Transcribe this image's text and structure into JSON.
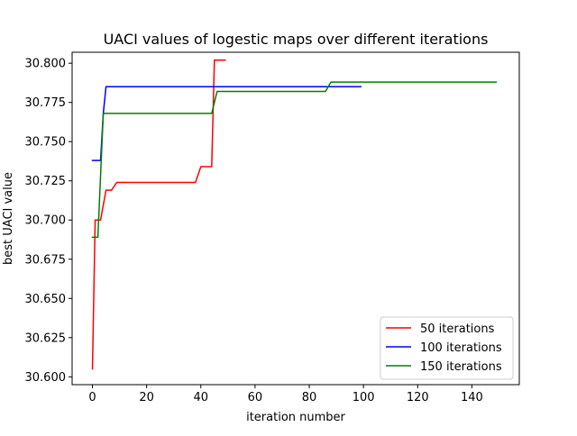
{
  "chart_data": {
    "type": "line",
    "title": "UACI values of logestic maps over different iterations",
    "xlabel": "iteration number",
    "ylabel": "best UACI value",
    "xlim": [
      -7.5,
      157.5
    ],
    "ylim": [
      30.595,
      30.807
    ],
    "xticks": [
      0,
      20,
      40,
      60,
      80,
      100,
      120,
      140
    ],
    "yticks": [
      30.6,
      30.625,
      30.65,
      30.675,
      30.7,
      30.725,
      30.75,
      30.775,
      30.8
    ],
    "yticklabels": [
      "30.600",
      "30.625",
      "30.650",
      "30.675",
      "30.700",
      "30.725",
      "30.750",
      "30.775",
      "30.800"
    ],
    "grid": false,
    "legend_position": "lower-right",
    "series": [
      {
        "name": "50 iterations",
        "color": "#ff0000",
        "points": [
          [
            0,
            30.605
          ],
          [
            1,
            30.7
          ],
          [
            2,
            30.7
          ],
          [
            3,
            30.7
          ],
          [
            5,
            30.719
          ],
          [
            6,
            30.719
          ],
          [
            7,
            30.719
          ],
          [
            9,
            30.724
          ],
          [
            38,
            30.724
          ],
          [
            40,
            30.734
          ],
          [
            44,
            30.734
          ],
          [
            45,
            30.802
          ],
          [
            49,
            30.802
          ]
        ]
      },
      {
        "name": "100 iterations",
        "color": "#0000ff",
        "points": [
          [
            0,
            30.738
          ],
          [
            3,
            30.738
          ],
          [
            4,
            30.768
          ],
          [
            5,
            30.785
          ],
          [
            99,
            30.785
          ]
        ]
      },
      {
        "name": "150 iterations",
        "color": "#008000",
        "points": [
          [
            0,
            30.689
          ],
          [
            2,
            30.689
          ],
          [
            4,
            30.768
          ],
          [
            44,
            30.768
          ],
          [
            46,
            30.782
          ],
          [
            86,
            30.782
          ],
          [
            88,
            30.788
          ],
          [
            149,
            30.788
          ]
        ]
      }
    ]
  }
}
